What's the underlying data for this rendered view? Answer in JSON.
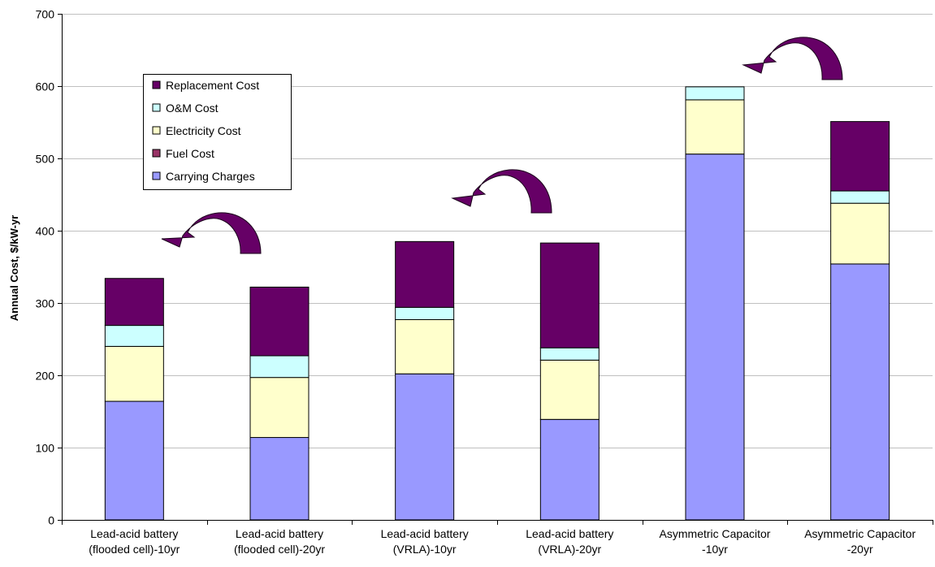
{
  "chart_data": {
    "type": "bar",
    "stacked": true,
    "title": "",
    "xlabel": "",
    "ylabel": "Annual Cost, $/kW-yr",
    "ylim": [
      0,
      700
    ],
    "yticks": [
      0,
      100,
      200,
      300,
      400,
      500,
      600,
      700
    ],
    "grid": true,
    "legend_position": "top-left",
    "categories": [
      [
        "Lead-acid battery",
        "(flooded cell)-10yr"
      ],
      [
        "Lead-acid battery",
        "(flooded cell)-20yr"
      ],
      [
        "Lead-acid battery",
        "(VRLA)-10yr"
      ],
      [
        "Lead-acid battery",
        "(VRLA)-20yr"
      ],
      [
        "Asymmetric Capacitor",
        "-10yr"
      ],
      [
        "Asymmetric Capacitor",
        "-20yr"
      ]
    ],
    "series": [
      {
        "name": "Carrying Charges",
        "color": "#9999ff",
        "values": [
          164,
          114,
          202,
          139,
          506,
          354
        ]
      },
      {
        "name": "Fuel Cost",
        "color": "#993366",
        "values": [
          0,
          0,
          0,
          0,
          0,
          0
        ]
      },
      {
        "name": "Electricity Cost",
        "color": "#ffffcc",
        "values": [
          76,
          83,
          75,
          82,
          75,
          84
        ]
      },
      {
        "name": "O&M Cost",
        "color": "#ccffff",
        "values": [
          29,
          30,
          17,
          17,
          18,
          17
        ]
      },
      {
        "name": "Replacement Cost",
        "color": "#660066",
        "values": [
          65,
          95,
          91,
          145,
          0,
          96
        ]
      }
    ],
    "legend_order": [
      "Replacement Cost",
      "O&M Cost",
      "Electricity Cost",
      "Fuel Cost",
      "Carrying Charges"
    ],
    "annotations": {
      "arrow_color": "#660066",
      "arrow_count": 3,
      "arrow_over_category_pairs": [
        [
          0,
          1
        ],
        [
          2,
          3
        ],
        [
          4,
          5
        ]
      ]
    }
  }
}
